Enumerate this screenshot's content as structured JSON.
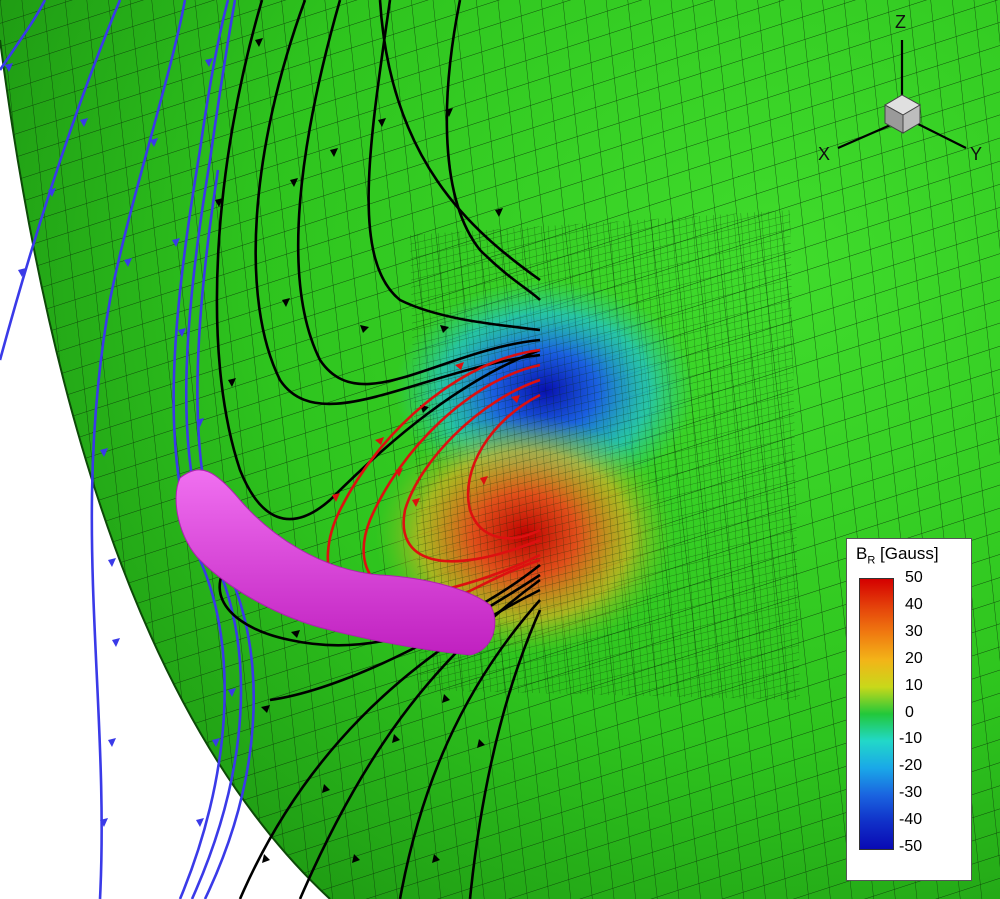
{
  "axes_triad": {
    "z_label": "Z",
    "x_label": "X",
    "y_label": "Y"
  },
  "legend": {
    "title_main": "B",
    "title_sub": "R",
    "title_unit": "[Gauss]",
    "levels": [
      "50",
      "40",
      "30",
      "20",
      "10",
      "0",
      "-10",
      "-20",
      "-30",
      "-40",
      "-50"
    ],
    "colors": [
      "#d40000",
      "#e4400a",
      "#f07a10",
      "#f3b418",
      "#c8d81a",
      "#22c83a",
      "#22d8c8",
      "#1aa8e8",
      "#1a64e0",
      "#1030c8",
      "#0a0ab4"
    ]
  },
  "scene_colors": {
    "sphere": "#2ec81e",
    "sphere_dark": "#1f9c14",
    "open_field_lines": "#3a3ae8",
    "closed_field_lines": "#000000",
    "twisted_field_lines": "#dd1010",
    "filament": "#e040e0"
  }
}
